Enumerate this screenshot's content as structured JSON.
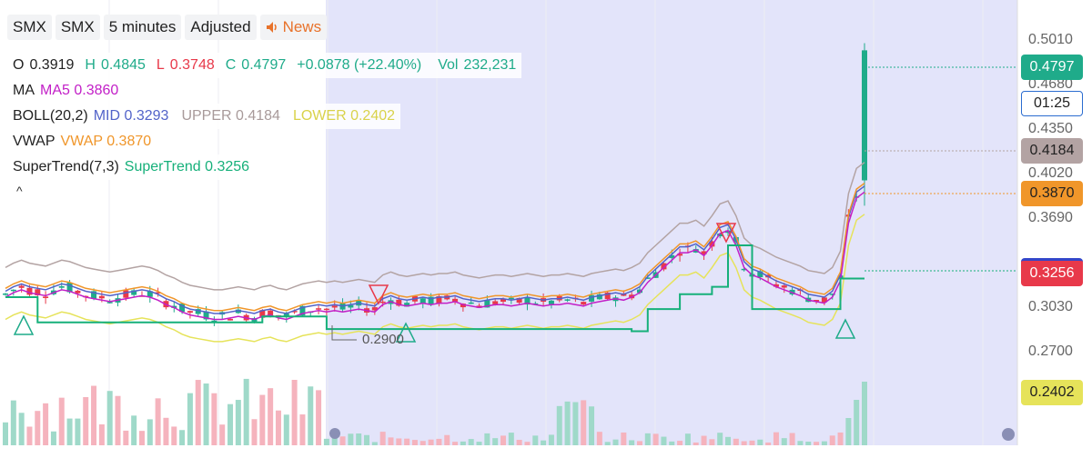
{
  "toolbar": {
    "items": [
      "SMX",
      "SMX",
      "5 minutes",
      "Adjusted"
    ],
    "news_label": "News",
    "news_icon": "speaker-icon"
  },
  "legend": {
    "ohlc": {
      "o_label": "O",
      "o": "0.3919",
      "h_label": "H",
      "h": "0.4845",
      "l_label": "L",
      "l": "0.3748",
      "c_label": "C",
      "c": "0.4797",
      "change": "+0.0878 (+22.40%)",
      "vol_label": "Vol",
      "vol": "232,231"
    },
    "ma": {
      "name": "MA",
      "value": "MA5 0.3860"
    },
    "boll": {
      "name": "BOLL(20,2)",
      "mid": "MID 0.3293",
      "upper": "UPPER 0.4184",
      "lower": "LOWER 0.2402"
    },
    "vwap": {
      "name": "VWAP",
      "value": "VWAP 0.3870"
    },
    "supertrend": {
      "name": "SuperTrend(7,3)",
      "value": "SuperTrend 0.3256"
    },
    "collapse": "^"
  },
  "price_axis": [
    "0.5010",
    "0.4680",
    "0.4350",
    "0.4020",
    "0.3690",
    "0.3030",
    "0.2700"
  ],
  "badges": {
    "last": "0.4797",
    "countdown": "01:25",
    "upper": "0.4184",
    "vwap": "0.3870",
    "supertrend": "0.3256",
    "lower": "0.2402"
  },
  "low_marker": "0.2900",
  "colors": {
    "up": "#1fab8a",
    "down": "#e8394a",
    "ma": "#c21fc7",
    "mid": "#5263c9",
    "upper": "#b3a3a3",
    "lower": "#e6e35a",
    "vwap": "#f0962a",
    "supertrend": "#16b07a",
    "extended_hours": "#e3e4fa"
  },
  "chart_data": {
    "type": "candlestick",
    "symbol": "SMX",
    "interval": "5 minutes",
    "y_range": [
      0.24,
      0.51
    ],
    "ohlc_last": {
      "open": 0.3919,
      "high": 0.4845,
      "low": 0.3748,
      "close": 0.4797
    },
    "ma5": [
      0.315,
      0.318,
      0.32,
      0.318,
      0.317,
      0.316,
      0.318,
      0.32,
      0.319,
      0.317,
      0.315,
      0.314,
      0.313,
      0.312,
      0.313,
      0.314,
      0.315,
      0.316,
      0.315,
      0.313,
      0.31,
      0.308,
      0.305,
      0.303,
      0.302,
      0.301,
      0.3,
      0.3,
      0.301,
      0.302,
      0.301,
      0.3,
      0.302,
      0.303,
      0.301,
      0.3,
      0.302,
      0.304,
      0.305,
      0.306,
      0.305,
      0.306,
      0.305,
      0.306,
      0.307,
      0.306,
      0.305,
      0.31,
      0.312,
      0.31,
      0.309,
      0.31,
      0.311,
      0.31,
      0.311,
      0.311,
      0.312,
      0.31,
      0.309,
      0.308,
      0.309,
      0.31,
      0.31,
      0.309,
      0.31,
      0.311,
      0.31,
      0.309,
      0.31,
      0.31,
      0.311,
      0.31,
      0.309,
      0.311,
      0.312,
      0.313,
      0.314,
      0.313,
      0.315,
      0.318,
      0.325,
      0.33,
      0.335,
      0.34,
      0.345,
      0.345,
      0.347,
      0.343,
      0.35,
      0.358,
      0.36,
      0.35,
      0.335,
      0.33,
      0.328,
      0.325,
      0.322,
      0.32,
      0.318,
      0.316,
      0.313,
      0.312,
      0.311,
      0.315,
      0.326,
      0.365,
      0.382,
      0.386
    ],
    "supertrend_steps": [
      {
        "from": 0,
        "to": 4,
        "value": 0.313
      },
      {
        "from": 4,
        "to": 32,
        "value": 0.296
      },
      {
        "from": 32,
        "to": 40,
        "value": 0.3
      },
      {
        "from": 40,
        "to": 78,
        "value": 0.2915
      },
      {
        "from": 78,
        "to": 80,
        "value": 0.29
      },
      {
        "from": 80,
        "to": 84,
        "value": 0.305
      },
      {
        "from": 84,
        "to": 88,
        "value": 0.315
      },
      {
        "from": 88,
        "to": 90,
        "value": 0.32
      },
      {
        "from": 90,
        "to": 93,
        "value": 0.348
      },
      {
        "from": 93,
        "to": 104,
        "value": 0.305
      },
      {
        "from": 104,
        "to": 107,
        "value": 0.3256
      }
    ],
    "volume_note": "volume bars shown below price pane; latest Vol 232,231"
  }
}
